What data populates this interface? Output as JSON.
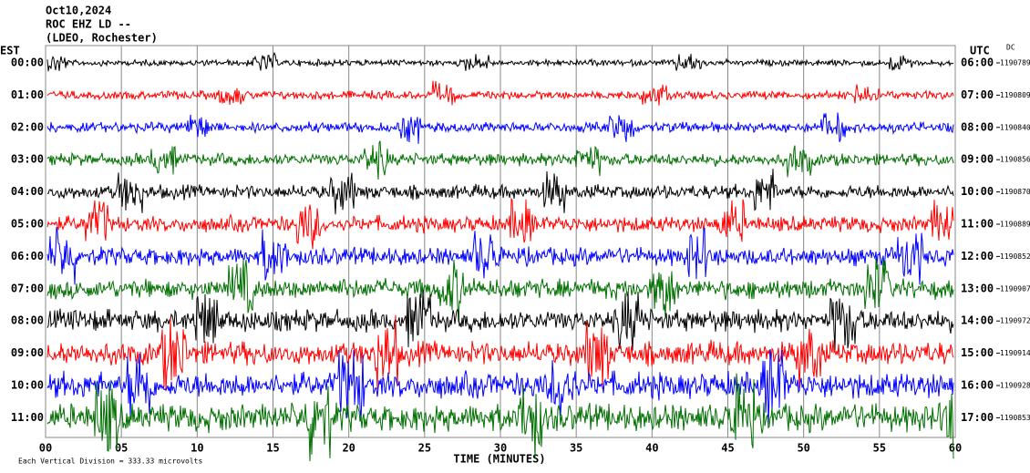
{
  "chart_data": {
    "type": "seismogram",
    "title_lines": [
      "Oct10,2024",
      "ROC EHZ LD --",
      "(LDEO, Rochester)"
    ],
    "left_axis_label": "EST",
    "right_axis_label": "UTC",
    "dc_label": "DC",
    "x_label": "TIME (MINUTES)",
    "footnote": "Each Vertical Division =  333.33 microvolts",
    "xlim": [
      0,
      60
    ],
    "xticks": [
      {
        "value": 0,
        "label": "00"
      },
      {
        "value": 5,
        "label": "05"
      },
      10,
      15,
      20,
      25,
      30,
      35,
      40,
      45,
      50,
      55,
      60
    ],
    "trace_colors": [
      "#000000",
      "#ff0000",
      "#0000ff",
      "#007000"
    ],
    "rows": [
      {
        "est": "00:00",
        "utc": "06:00",
        "dc": 1190789
      },
      {
        "est": "01:00",
        "utc": "07:00",
        "dc": 1190809
      },
      {
        "est": "02:00",
        "utc": "08:00",
        "dc": 1190840
      },
      {
        "est": "03:00",
        "utc": "09:00",
        "dc": 1190856
      },
      {
        "est": "04:00",
        "utc": "10:00",
        "dc": 1190870
      },
      {
        "est": "05:00",
        "utc": "11:00",
        "dc": 1190889
      },
      {
        "est": "06:00",
        "utc": "12:00",
        "dc": 1190852
      },
      {
        "est": "07:00",
        "utc": "13:00",
        "dc": 1190907
      },
      {
        "est": "08:00",
        "utc": "14:00",
        "dc": 1190972
      },
      {
        "est": "09:00",
        "utc": "15:00",
        "dc": 1190914
      },
      {
        "est": "10:00",
        "utc": "16:00",
        "dc": 1190928
      },
      {
        "est": "11:00",
        "utc": "17:00",
        "dc": 1190853
      }
    ]
  }
}
